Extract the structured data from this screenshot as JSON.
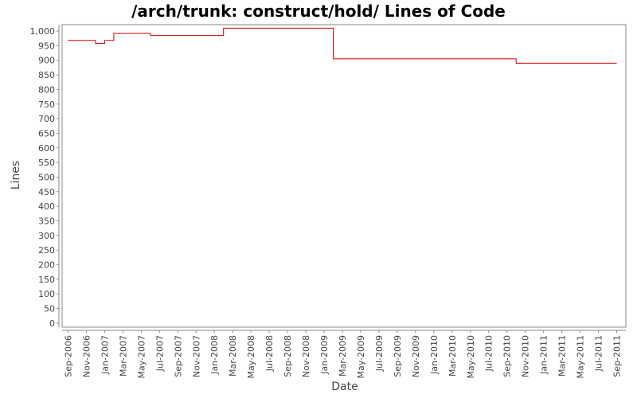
{
  "chart_data": {
    "type": "line",
    "title": "/arch/trunk: construct/hold/ Lines of Code",
    "x_label": "Date",
    "y_label": "Lines",
    "x": [
      "2006-09",
      "2006-12",
      "2007-01",
      "2007-02",
      "2007-06",
      "2008-02",
      "2009-02",
      "2010-10",
      "2011-09"
    ],
    "series": [
      {
        "color": "#cc0000",
        "values": [
          968,
          958,
          968,
          992,
          985,
          1010,
          905,
          890,
          890
        ]
      }
    ],
    "step": true,
    "xlim": [
      "2006-08",
      "2011-10"
    ],
    "xticks": [
      {
        "value": "2006-09",
        "label": "Sep-2006"
      },
      {
        "value": "2006-11",
        "label": "Nov-2006"
      },
      {
        "value": "2007-01",
        "label": "Jan-2007"
      },
      {
        "value": "2007-03",
        "label": "Mar-2007"
      },
      {
        "value": "2007-05",
        "label": "May-2007"
      },
      {
        "value": "2007-07",
        "label": "Jul-2007"
      },
      {
        "value": "2007-09",
        "label": "Sep-2007"
      },
      {
        "value": "2007-11",
        "label": "Nov-2007"
      },
      {
        "value": "2008-01",
        "label": "Jan-2008"
      },
      {
        "value": "2008-03",
        "label": "Mar-2008"
      },
      {
        "value": "2008-05",
        "label": "May-2008"
      },
      {
        "value": "2008-07",
        "label": "Jul-2008"
      },
      {
        "value": "2008-09",
        "label": "Sep-2008"
      },
      {
        "value": "2008-11",
        "label": "Nov-2008"
      },
      {
        "value": "2009-01",
        "label": "Jan-2009"
      },
      {
        "value": "2009-03",
        "label": "Mar-2009"
      },
      {
        "value": "2009-05",
        "label": "May-2009"
      },
      {
        "value": "2009-07",
        "label": "Jul-2009"
      },
      {
        "value": "2009-09",
        "label": "Sep-2009"
      },
      {
        "value": "2009-11",
        "label": "Nov-2009"
      },
      {
        "value": "2010-01",
        "label": "Jan-2010"
      },
      {
        "value": "2010-03",
        "label": "Mar-2010"
      },
      {
        "value": "2010-05",
        "label": "May-2010"
      },
      {
        "value": "2010-07",
        "label": "Jul-2010"
      },
      {
        "value": "2010-09",
        "label": "Sep-2010"
      },
      {
        "value": "2010-11",
        "label": "Nov-2010"
      },
      {
        "value": "2011-01",
        "label": "Jan-2011"
      },
      {
        "value": "2011-03",
        "label": "Mar-2011"
      },
      {
        "value": "2011-05",
        "label": "May-2011"
      },
      {
        "value": "2011-07",
        "label": "Jul-2011"
      },
      {
        "value": "2011-09",
        "label": "Sep-2011"
      }
    ],
    "ylim": [
      -14,
      1022
    ],
    "yticks": [
      0,
      50,
      100,
      150,
      200,
      250,
      300,
      350,
      400,
      450,
      500,
      550,
      600,
      650,
      700,
      750,
      800,
      850,
      900,
      950,
      {
        "value": 1000,
        "label": "1,000"
      }
    ],
    "grid": false
  }
}
